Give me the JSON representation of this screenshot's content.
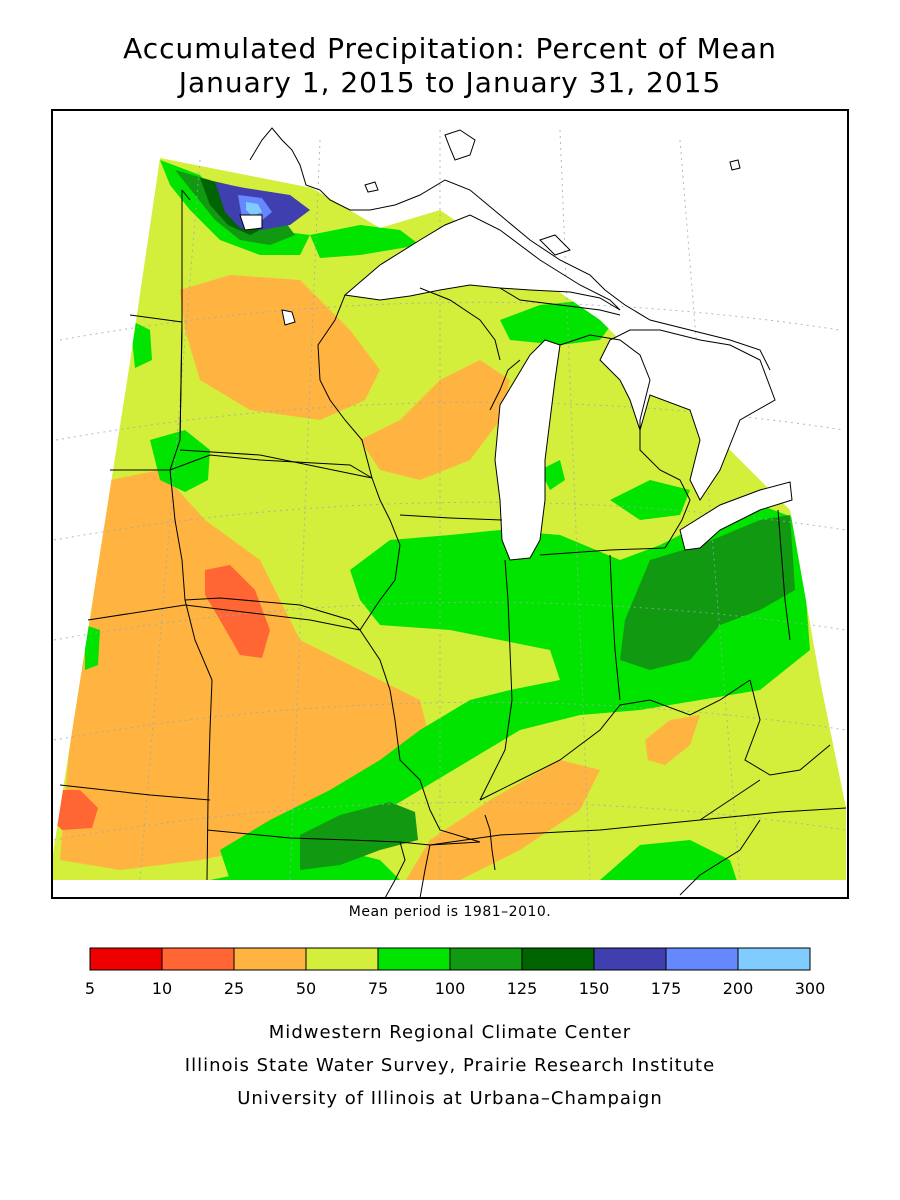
{
  "title": {
    "line1": "Accumulated Precipitation: Percent of Mean",
    "line2": "January 1, 2015 to January 31, 2015"
  },
  "map": {
    "region": "Midwest United States",
    "variable": "Accumulated Precipitation: Percent of Mean",
    "water_color": "#ffffff",
    "boundary_color": "#000000",
    "graticule": true
  },
  "note": "Mean period is 1981–2010.",
  "legend": {
    "colors": [
      "#ee0000",
      "#ff6633",
      "#ffb340",
      "#d4ee3c",
      "#00e400",
      "#119911",
      "#006400",
      "#3f3fb0",
      "#6688ff",
      "#80ccff"
    ],
    "ticks": [
      "5",
      "10",
      "25",
      "50",
      "75",
      "100",
      "125",
      "150",
      "175",
      "200",
      "300"
    ]
  },
  "credits": {
    "line1": "Midwestern Regional Climate Center",
    "line2": "Illinois State Water Survey, Prairie Research Institute",
    "line3": "University of Illinois at Urbana–Champaign"
  }
}
